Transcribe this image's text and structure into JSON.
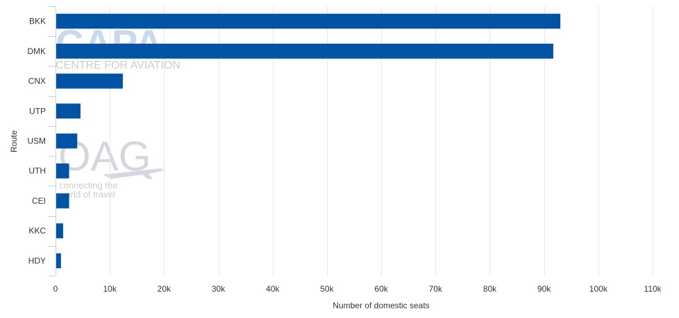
{
  "watermarks": {
    "capa_logo": "CAPA",
    "capa_subtitle": "CENTRE FOR AVIATION",
    "oag_logo": "OAG",
    "oag_tagline_1": "connecting the",
    "oag_tagline_2": "world of travel"
  },
  "chart_data": {
    "type": "bar",
    "orientation": "horizontal",
    "categories": [
      "BKK",
      "DMK",
      "CNX",
      "UTP",
      "USM",
      "UTH",
      "CEI",
      "KKC",
      "HDY"
    ],
    "values": [
      93000,
      91700,
      12400,
      4600,
      4000,
      2500,
      2500,
      1400,
      1000
    ],
    "xlabel": "Number of domestic seats",
    "ylabel": "Route",
    "xlim": [
      0,
      110000
    ],
    "x_ticks": [
      0,
      10000,
      20000,
      30000,
      40000,
      50000,
      60000,
      70000,
      80000,
      90000,
      100000,
      110000
    ],
    "x_tick_labels": [
      "0",
      "10k",
      "20k",
      "30k",
      "40k",
      "50k",
      "60k",
      "70k",
      "80k",
      "90k",
      "100k",
      "110k"
    ],
    "grid": "vertical",
    "bar_color": "#0353a4",
    "grid_color": "#e6e6e6"
  }
}
